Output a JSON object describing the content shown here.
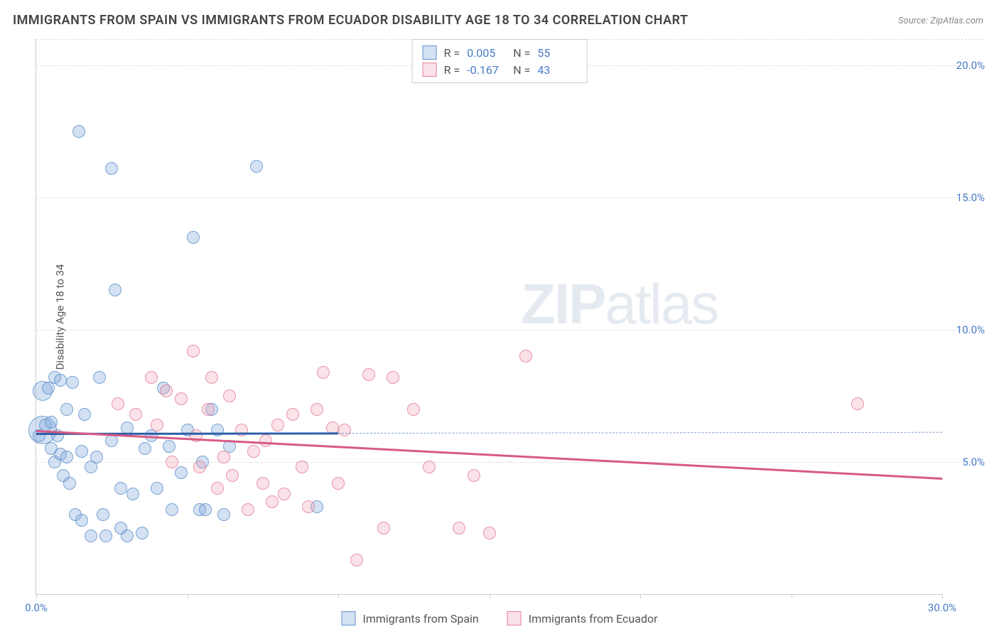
{
  "title": "IMMIGRANTS FROM SPAIN VS IMMIGRANTS FROM ECUADOR DISABILITY AGE 18 TO 34 CORRELATION CHART",
  "source": "Source: ZipAtlas.com",
  "ylabel": "Disability Age 18 to 34",
  "watermark_bold": "ZIP",
  "watermark_rest": "atlas",
  "chart": {
    "type": "scatter",
    "background_color": "#ffffff",
    "grid_color": "#dddddd",
    "axis_color": "#cccccc",
    "xlim": [
      0,
      30
    ],
    "ylim": [
      0,
      21
    ],
    "xticks": [
      0,
      5,
      10,
      15,
      20,
      25,
      30
    ],
    "xtick_labels": [
      "0.0%",
      "",
      "",
      "",
      "",
      "",
      "30.0%"
    ],
    "yticks": [
      5,
      10,
      15,
      20
    ],
    "ytick_labels": [
      "5.0%",
      "10.0%",
      "15.0%",
      "20.0%"
    ],
    "point_radius": 9,
    "series": [
      {
        "name": "Immigrants from Spain",
        "color_fill": "rgba(130,170,220,0.35)",
        "color_stroke": "rgba(90,140,200,0.75)",
        "R": "0.005",
        "N": "55",
        "trend": {
          "y_start": 6.1,
          "y_end": 6.15,
          "solid_xend": 10,
          "color": "#2e5fa8"
        },
        "points": [
          [
            0.2,
            6.2,
            20
          ],
          [
            0.2,
            7.7,
            14
          ],
          [
            0.1,
            6.0,
            9
          ],
          [
            0.3,
            6.4,
            9
          ],
          [
            0.4,
            7.8,
            9
          ],
          [
            0.5,
            5.5,
            9
          ],
          [
            0.6,
            8.2,
            9
          ],
          [
            0.6,
            5.0,
            9
          ],
          [
            0.7,
            6.0,
            9
          ],
          [
            0.8,
            5.3,
            9
          ],
          [
            0.8,
            8.1,
            9
          ],
          [
            0.9,
            4.5,
            9
          ],
          [
            1.0,
            5.2,
            9
          ],
          [
            1.0,
            7.0,
            9
          ],
          [
            1.1,
            4.2,
            9
          ],
          [
            1.2,
            8.0,
            9
          ],
          [
            1.3,
            3.0,
            9
          ],
          [
            1.4,
            17.5,
            9
          ],
          [
            1.5,
            5.4,
            9
          ],
          [
            1.5,
            2.8,
            9
          ],
          [
            1.6,
            6.8,
            9
          ],
          [
            1.8,
            4.8,
            9
          ],
          [
            1.8,
            2.2,
            9
          ],
          [
            2.0,
            5.2,
            9
          ],
          [
            2.1,
            8.2,
            9
          ],
          [
            2.2,
            3.0,
            9
          ],
          [
            2.3,
            2.2,
            9
          ],
          [
            2.5,
            16.1,
            9
          ],
          [
            2.5,
            5.8,
            9
          ],
          [
            2.6,
            11.5,
            9
          ],
          [
            2.8,
            4.0,
            9
          ],
          [
            2.8,
            2.5,
            9
          ],
          [
            3.0,
            6.3,
            9
          ],
          [
            3.0,
            2.2,
            9
          ],
          [
            3.2,
            3.8,
            9
          ],
          [
            3.5,
            2.3,
            9
          ],
          [
            3.6,
            5.5,
            9
          ],
          [
            3.8,
            6.0,
            9
          ],
          [
            4.0,
            4.0,
            9
          ],
          [
            4.2,
            7.8,
            9
          ],
          [
            4.4,
            5.6,
            9
          ],
          [
            4.5,
            3.2,
            9
          ],
          [
            4.8,
            4.6,
            9
          ],
          [
            5.0,
            6.2,
            9
          ],
          [
            5.2,
            13.5,
            9
          ],
          [
            5.4,
            3.2,
            9
          ],
          [
            5.5,
            5.0,
            9
          ],
          [
            5.6,
            3.2,
            9
          ],
          [
            5.8,
            7.0,
            9
          ],
          [
            6.0,
            6.2,
            9
          ],
          [
            6.2,
            3.0,
            9
          ],
          [
            6.4,
            5.6,
            9
          ],
          [
            7.3,
            16.2,
            9
          ],
          [
            9.3,
            3.3,
            9
          ],
          [
            0.5,
            6.5,
            9
          ]
        ]
      },
      {
        "name": "Immigrants from Ecuador",
        "color_fill": "rgba(240,160,180,0.3)",
        "color_stroke": "rgba(225,120,150,0.75)",
        "R": "-0.167",
        "N": "43",
        "trend": {
          "y_start": 6.2,
          "y_end": 4.4,
          "solid_xend": 30,
          "color": "#d85a85"
        },
        "points": [
          [
            2.7,
            7.2,
            9
          ],
          [
            3.3,
            6.8,
            9
          ],
          [
            3.8,
            8.2,
            9
          ],
          [
            4.0,
            6.4,
            9
          ],
          [
            4.3,
            7.7,
            9
          ],
          [
            4.5,
            5.0,
            9
          ],
          [
            4.8,
            7.4,
            9
          ],
          [
            5.2,
            9.2,
            9
          ],
          [
            5.3,
            6.0,
            9
          ],
          [
            5.4,
            4.8,
            9
          ],
          [
            5.7,
            7.0,
            9
          ],
          [
            5.8,
            8.2,
            9
          ],
          [
            6.0,
            4.0,
            9
          ],
          [
            6.2,
            5.2,
            9
          ],
          [
            6.5,
            4.5,
            9
          ],
          [
            6.8,
            6.2,
            9
          ],
          [
            7.0,
            3.2,
            9
          ],
          [
            7.2,
            5.4,
            9
          ],
          [
            7.5,
            4.2,
            9
          ],
          [
            7.8,
            3.5,
            9
          ],
          [
            8.0,
            6.4,
            9
          ],
          [
            8.2,
            3.8,
            9
          ],
          [
            8.5,
            6.8,
            9
          ],
          [
            8.8,
            4.8,
            9
          ],
          [
            9.0,
            3.3,
            9
          ],
          [
            9.3,
            7.0,
            9
          ],
          [
            9.5,
            8.4,
            9
          ],
          [
            9.8,
            6.3,
            9
          ],
          [
            10.2,
            6.2,
            9
          ],
          [
            10.6,
            1.3,
            9
          ],
          [
            11.0,
            8.3,
            9
          ],
          [
            11.5,
            2.5,
            9
          ],
          [
            11.8,
            8.2,
            9
          ],
          [
            12.5,
            7.0,
            9
          ],
          [
            13.0,
            4.8,
            9
          ],
          [
            14.0,
            2.5,
            9
          ],
          [
            14.5,
            4.5,
            9
          ],
          [
            15.0,
            2.3,
            9
          ],
          [
            16.2,
            9.0,
            9
          ],
          [
            27.2,
            7.2,
            9
          ],
          [
            6.4,
            7.5,
            9
          ],
          [
            7.6,
            5.8,
            9
          ],
          [
            10.0,
            4.2,
            9
          ]
        ]
      }
    ]
  },
  "legend_bottom": [
    {
      "label": "Immigrants from Spain",
      "swatch": "blue"
    },
    {
      "label": "Immigrants from Ecuador",
      "swatch": "pink"
    }
  ]
}
